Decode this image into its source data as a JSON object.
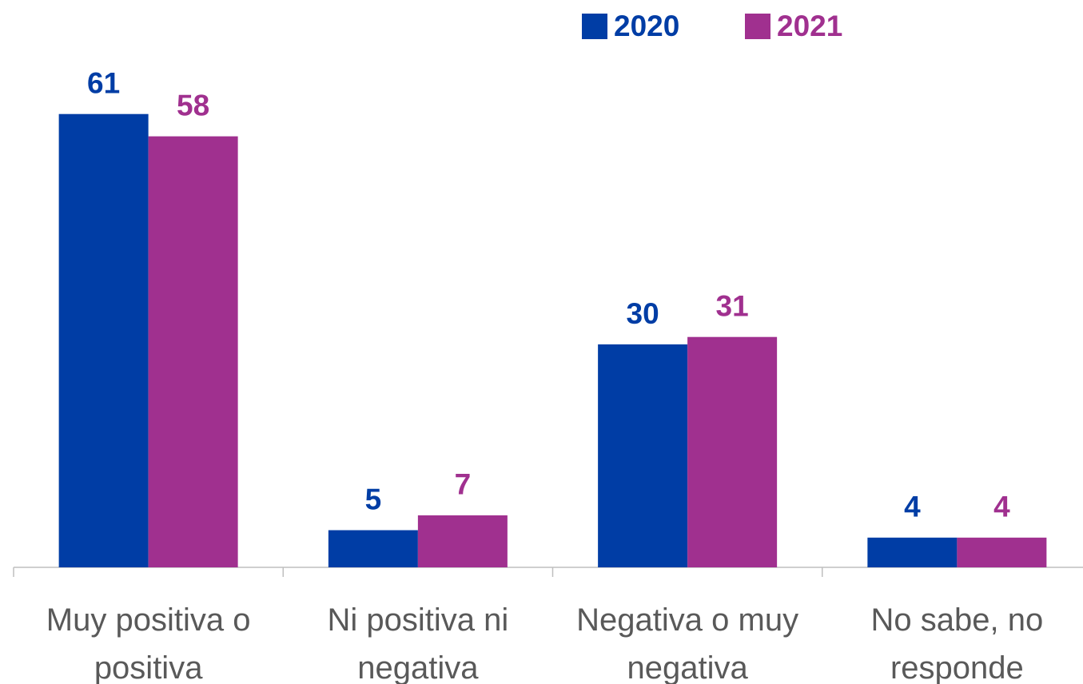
{
  "chart_data": {
    "type": "bar",
    "categories": [
      "Muy positiva o positiva",
      "Ni positiva ni negativa",
      "Negativa o muy negativa",
      "No sabe, no responde"
    ],
    "series": [
      {
        "name": "2020",
        "color": "#003DA5",
        "values": [
          61,
          5,
          30,
          4
        ]
      },
      {
        "name": "2021",
        "color": "#A0308F",
        "values": [
          58,
          7,
          31,
          4
        ]
      }
    ],
    "ylim": [
      0,
      70
    ],
    "grid": false,
    "legend": "top"
  }
}
